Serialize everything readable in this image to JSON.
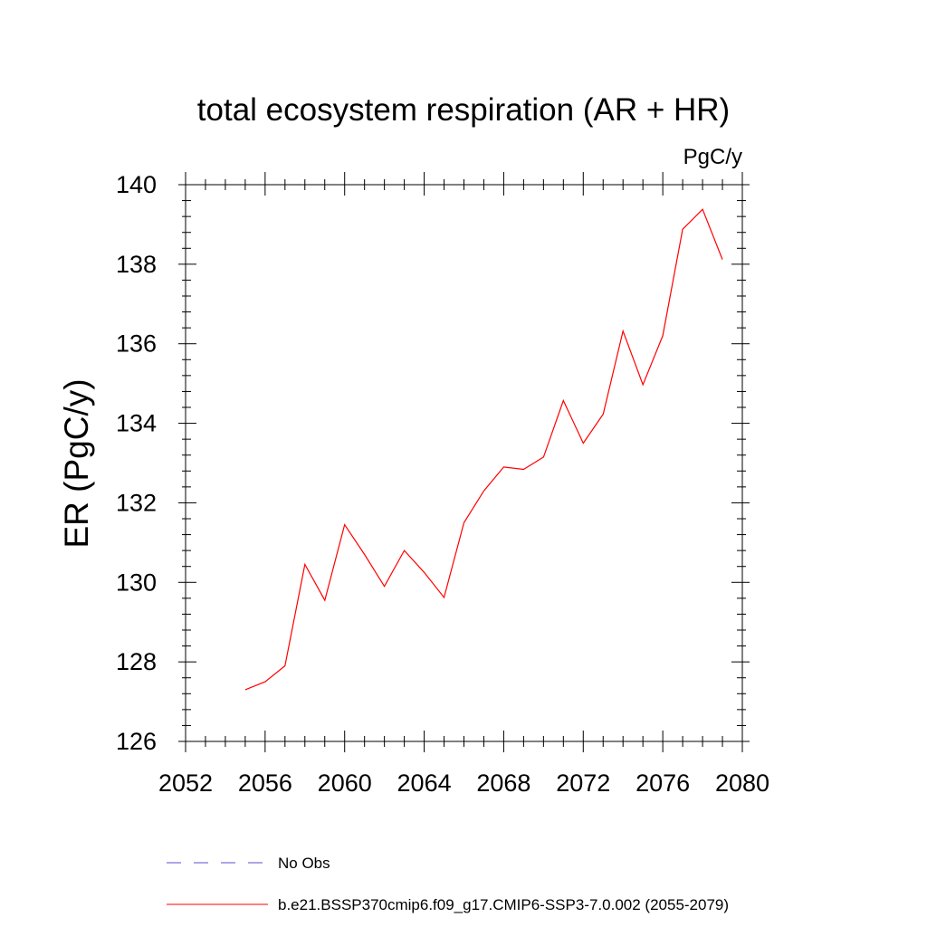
{
  "chart_data": {
    "type": "line",
    "title": "total ecosystem respiration (AR + HR)",
    "units_label": "PgC/y",
    "xlabel": "",
    "ylabel": "ER  (PgC/y)",
    "xlim": [
      2052,
      2080
    ],
    "ylim": [
      126,
      140
    ],
    "x_ticks": [
      2052,
      2056,
      2060,
      2064,
      2068,
      2072,
      2076,
      2080
    ],
    "y_ticks": [
      126,
      128,
      130,
      132,
      134,
      136,
      138,
      140
    ],
    "grid": false,
    "legend_position": "bottom",
    "series": [
      {
        "name": "b.e21.BSSP370cmip6.f09_g17.CMIP6-SSP3-7.0.002 (2055-2079)",
        "color": "#ff0000",
        "style": "solid",
        "x": [
          2055,
          2056,
          2057,
          2058,
          2059,
          2060,
          2061,
          2062,
          2063,
          2064,
          2065,
          2066,
          2067,
          2068,
          2069,
          2070,
          2071,
          2072,
          2073,
          2074,
          2075,
          2076,
          2077,
          2078,
          2079
        ],
        "y": [
          127.3,
          127.5,
          127.9,
          130.45,
          129.55,
          131.45,
          130.7,
          129.9,
          130.8,
          130.25,
          129.62,
          131.5,
          132.3,
          132.9,
          132.84,
          133.15,
          134.57,
          133.5,
          134.23,
          136.32,
          134.97,
          136.2,
          138.88,
          139.38,
          138.12
        ]
      }
    ],
    "legend": [
      {
        "label": "No Obs",
        "color": "#5b4fd6",
        "style": "dashed"
      },
      {
        "label": "b.e21.BSSP370cmip6.f09_g17.CMIP6-SSP3-7.0.002 (2055-2079)",
        "color": "#ff0000",
        "style": "solid"
      }
    ]
  }
}
